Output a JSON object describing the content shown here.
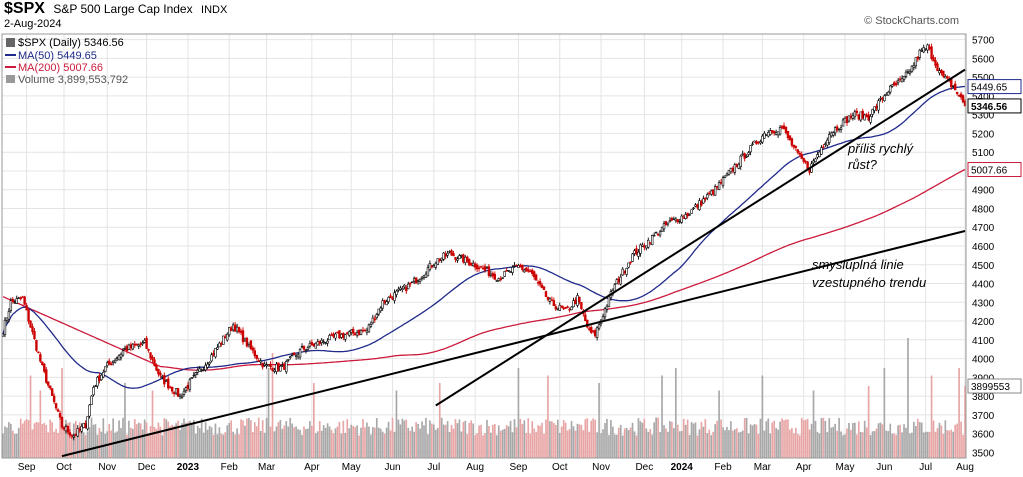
{
  "header": {
    "symbol": "$SPX",
    "name": "S&P 500 Large Cap Index",
    "exchange": "INDX",
    "date": "2-Aug-2024",
    "brand": "© StockCharts.com"
  },
  "legend": {
    "price": "$SPX (Daily) 5346.56",
    "ma50": "MA(50) 5449.65",
    "ma200": "MA(200) 5007.66",
    "volume": "Volume 3,899,553,792"
  },
  "colors": {
    "up": "#000000",
    "down": "#cc0000",
    "ma50": "#1f2a8a",
    "ma200": "#cc1b3c",
    "vol_down": "#e8a5a5",
    "vol_up": "#a8a8a8",
    "grid": "#e4e4e4"
  },
  "annotations": {
    "steep_line_label": [
      "příliš rychlý",
      "růst?"
    ],
    "trend_line_label": [
      "smysluplná linie",
      "vzestupného trendu"
    ]
  },
  "chart_data": {
    "type": "candlestick",
    "title": "$SPX S&P 500 Large Cap Index INDX",
    "ylim": [
      3470,
      5730
    ],
    "y_ticks": [
      3500,
      3600,
      3700,
      3800,
      3900,
      4000,
      4100,
      4200,
      4300,
      4400,
      4500,
      4600,
      4700,
      4800,
      4900,
      5000,
      5100,
      5200,
      5300,
      5400,
      5500,
      5600,
      5700
    ],
    "x_labels": [
      "Sep",
      "Oct",
      "Nov",
      "Dec",
      "2023",
      "Feb",
      "Mar",
      "Apr",
      "May",
      "Jun",
      "Jul",
      "Aug",
      "Sep",
      "Oct",
      "Nov",
      "Dec",
      "2024",
      "Feb",
      "Mar",
      "Apr",
      "May",
      "Jun",
      "Jul",
      "Aug"
    ],
    "x_label_index": [
      12,
      31,
      53,
      73,
      94,
      115,
      134,
      157,
      177,
      198,
      219,
      240,
      262,
      283,
      304,
      326,
      345,
      366,
      386,
      407,
      428,
      448,
      469,
      489
    ],
    "n_points": 490,
    "price_anchors": [
      [
        0,
        4150
      ],
      [
        4,
        4300
      ],
      [
        10,
        4320
      ],
      [
        20,
        3950
      ],
      [
        30,
        3640
      ],
      [
        36,
        3590
      ],
      [
        42,
        3650
      ],
      [
        46,
        3850
      ],
      [
        52,
        3950
      ],
      [
        62,
        4050
      ],
      [
        72,
        4080
      ],
      [
        80,
        3900
      ],
      [
        90,
        3800
      ],
      [
        95,
        3870
      ],
      [
        105,
        4000
      ],
      [
        117,
        4180
      ],
      [
        126,
        4050
      ],
      [
        133,
        3960
      ],
      [
        142,
        3950
      ],
      [
        152,
        4050
      ],
      [
        170,
        4120
      ],
      [
        185,
        4150
      ],
      [
        193,
        4300
      ],
      [
        208,
        4400
      ],
      [
        220,
        4520
      ],
      [
        227,
        4560
      ],
      [
        240,
        4500
      ],
      [
        252,
        4430
      ],
      [
        262,
        4490
      ],
      [
        268,
        4460
      ],
      [
        278,
        4300
      ],
      [
        286,
        4250
      ],
      [
        292,
        4320
      ],
      [
        298,
        4140
      ],
      [
        301,
        4130
      ],
      [
        310,
        4370
      ],
      [
        320,
        4550
      ],
      [
        338,
        4720
      ],
      [
        348,
        4770
      ],
      [
        362,
        4900
      ],
      [
        374,
        5050
      ],
      [
        388,
        5210
      ],
      [
        396,
        5230
      ],
      [
        405,
        5070
      ],
      [
        410,
        5010
      ],
      [
        420,
        5200
      ],
      [
        432,
        5300
      ],
      [
        440,
        5290
      ],
      [
        450,
        5430
      ],
      [
        457,
        5480
      ],
      [
        462,
        5550
      ],
      [
        466,
        5630
      ],
      [
        470,
        5660
      ],
      [
        477,
        5510
      ],
      [
        483,
        5450
      ],
      [
        489,
        5350
      ]
    ],
    "last_close": 5346.56,
    "ma50_last": 5449.65,
    "ma200_last": 5007.66,
    "volume_last": 3899553792,
    "volume_label": "3899553",
    "trendlines": [
      {
        "name": "long-term uptrend",
        "from": [
          30,
          3480
        ],
        "to": [
          489,
          4680
        ]
      },
      {
        "name": "steep uptrend",
        "from": [
          220,
          3750
        ],
        "to": [
          489,
          5540
        ]
      }
    ]
  }
}
